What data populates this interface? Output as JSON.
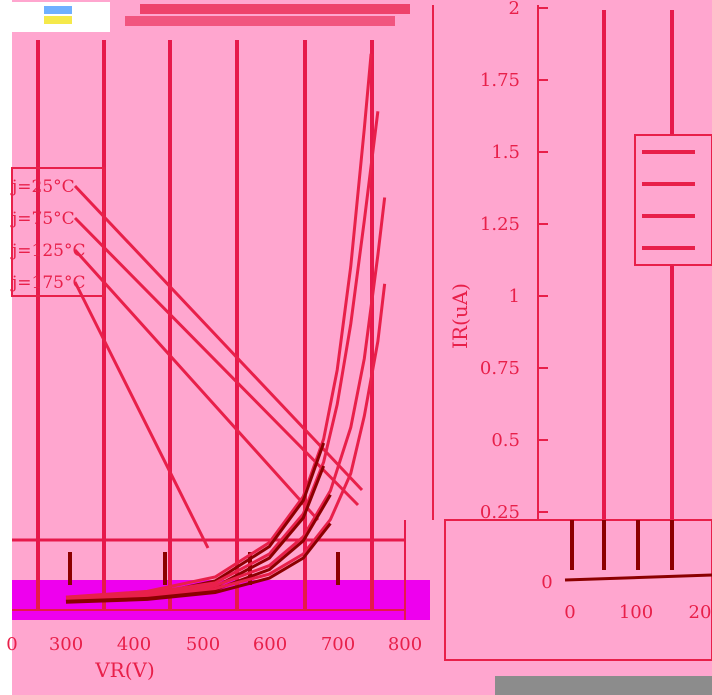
{
  "chart_data": [
    {
      "type": "line",
      "title": "",
      "xlabel": "VR(V)",
      "ylabel": "",
      "x_ticks": [
        "0",
        "300",
        "400",
        "500",
        "600",
        "700",
        "800"
      ],
      "xlim": [
        250,
        810
      ],
      "ylim": [
        0,
        1
      ],
      "grid": true,
      "legend_position": "left",
      "series": [
        {
          "name": "j=25°C",
          "x": [
            300,
            420,
            520,
            600,
            650,
            680,
            700,
            720,
            740,
            750
          ],
          "y": [
            0.005,
            0.015,
            0.04,
            0.1,
            0.18,
            0.28,
            0.4,
            0.58,
            0.82,
            0.95
          ]
        },
        {
          "name": "j=75°C",
          "x": [
            300,
            420,
            520,
            600,
            650,
            680,
            700,
            720,
            740,
            760
          ],
          "y": [
            0.005,
            0.012,
            0.03,
            0.08,
            0.15,
            0.24,
            0.34,
            0.48,
            0.66,
            0.85
          ]
        },
        {
          "name": "j=125°C",
          "x": [
            300,
            420,
            520,
            600,
            650,
            690,
            720,
            740,
            760,
            770
          ],
          "y": [
            0.004,
            0.01,
            0.025,
            0.06,
            0.11,
            0.19,
            0.3,
            0.42,
            0.6,
            0.7
          ]
        },
        {
          "name": "j=175°C",
          "x": [
            300,
            420,
            520,
            600,
            650,
            690,
            720,
            740,
            760,
            770
          ],
          "y": [
            0.003,
            0.008,
            0.02,
            0.045,
            0.08,
            0.14,
            0.22,
            0.32,
            0.45,
            0.55
          ]
        }
      ],
      "colors": {
        "curve": "#e8204a",
        "grid": "#e6194b",
        "dark_curve": "#8b0000",
        "magenta": "#ee00ee",
        "background": "#ffa6cf"
      }
    },
    {
      "type": "line",
      "title": "",
      "xlabel": "",
      "ylabel": "IR(uA)",
      "y_ticks": [
        "0.25",
        "0.5",
        "0.75",
        "1",
        "1.25",
        "1.5",
        "1.75",
        "2"
      ],
      "x_ticks": [
        "0",
        "100",
        "20"
      ],
      "ylim": [
        0.25,
        2
      ],
      "grid": true,
      "legend_position": "top-right",
      "series": [
        {
          "x": [
            0,
            100,
            200
          ],
          "y": [
            0.02,
            0.03,
            0.05
          ]
        }
      ]
    }
  ],
  "lower_axis_label": "0"
}
